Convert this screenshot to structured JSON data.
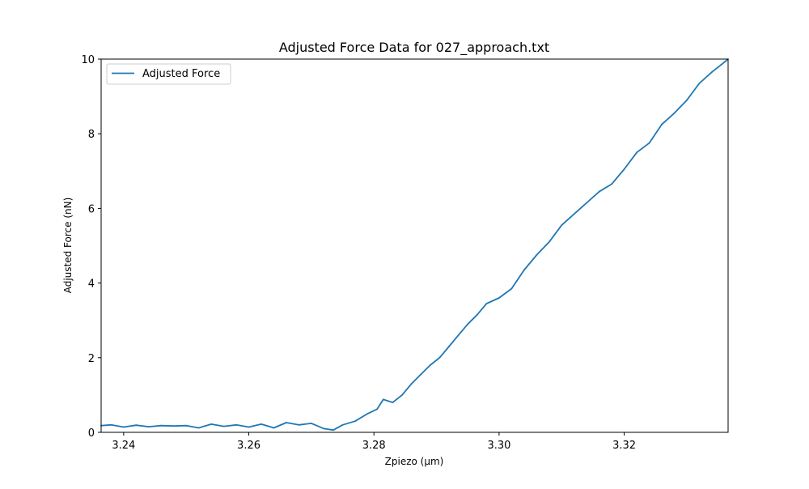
{
  "chart_data": {
    "type": "line",
    "title": "Adjusted Force Data for 027_approach.txt",
    "xlabel": "Zpiezo (μm)",
    "ylabel": "Adjusted Force  (nN)",
    "xlim": [
      3.2364,
      3.3366
    ],
    "ylim": [
      0,
      10
    ],
    "xticks": [
      3.24,
      3.26,
      3.28,
      3.3,
      3.32
    ],
    "xtick_labels": [
      "3.24",
      "3.26",
      "3.28",
      "3.30",
      "3.32"
    ],
    "yticks": [
      0,
      2,
      4,
      6,
      8,
      10
    ],
    "ytick_labels": [
      "0",
      "2",
      "4",
      "6",
      "8",
      "10"
    ],
    "grid": false,
    "legend": {
      "location": "upper left",
      "entries": [
        "Adjusted Force"
      ]
    },
    "series": [
      {
        "name": "Adjusted Force",
        "color": "#1f77b4",
        "x": [
          3.2364,
          3.238,
          3.24,
          3.242,
          3.244,
          3.246,
          3.248,
          3.25,
          3.252,
          3.254,
          3.256,
          3.258,
          3.26,
          3.262,
          3.264,
          3.266,
          3.268,
          3.27,
          3.272,
          3.2735,
          3.275,
          3.277,
          3.279,
          3.2805,
          3.2815,
          3.283,
          3.2845,
          3.286,
          3.2875,
          3.289,
          3.2905,
          3.292,
          3.2935,
          3.295,
          3.2965,
          3.298,
          3.3,
          3.302,
          3.304,
          3.306,
          3.308,
          3.31,
          3.312,
          3.314,
          3.316,
          3.318,
          3.32,
          3.322,
          3.324,
          3.326,
          3.328,
          3.33,
          3.332,
          3.334,
          3.3355,
          3.3366
        ],
        "y": [
          0.18,
          0.2,
          0.14,
          0.19,
          0.15,
          0.18,
          0.17,
          0.18,
          0.12,
          0.22,
          0.16,
          0.2,
          0.14,
          0.22,
          0.12,
          0.26,
          0.2,
          0.24,
          0.1,
          0.06,
          0.2,
          0.3,
          0.5,
          0.62,
          0.88,
          0.8,
          1.0,
          1.3,
          1.55,
          1.8,
          2.0,
          2.3,
          2.6,
          2.9,
          3.15,
          3.45,
          3.6,
          3.85,
          4.35,
          4.75,
          5.1,
          5.55,
          5.85,
          6.15,
          6.45,
          6.65,
          7.05,
          7.5,
          7.75,
          8.25,
          8.55,
          8.9,
          9.35,
          9.65,
          9.85,
          10.0
        ]
      }
    ]
  }
}
